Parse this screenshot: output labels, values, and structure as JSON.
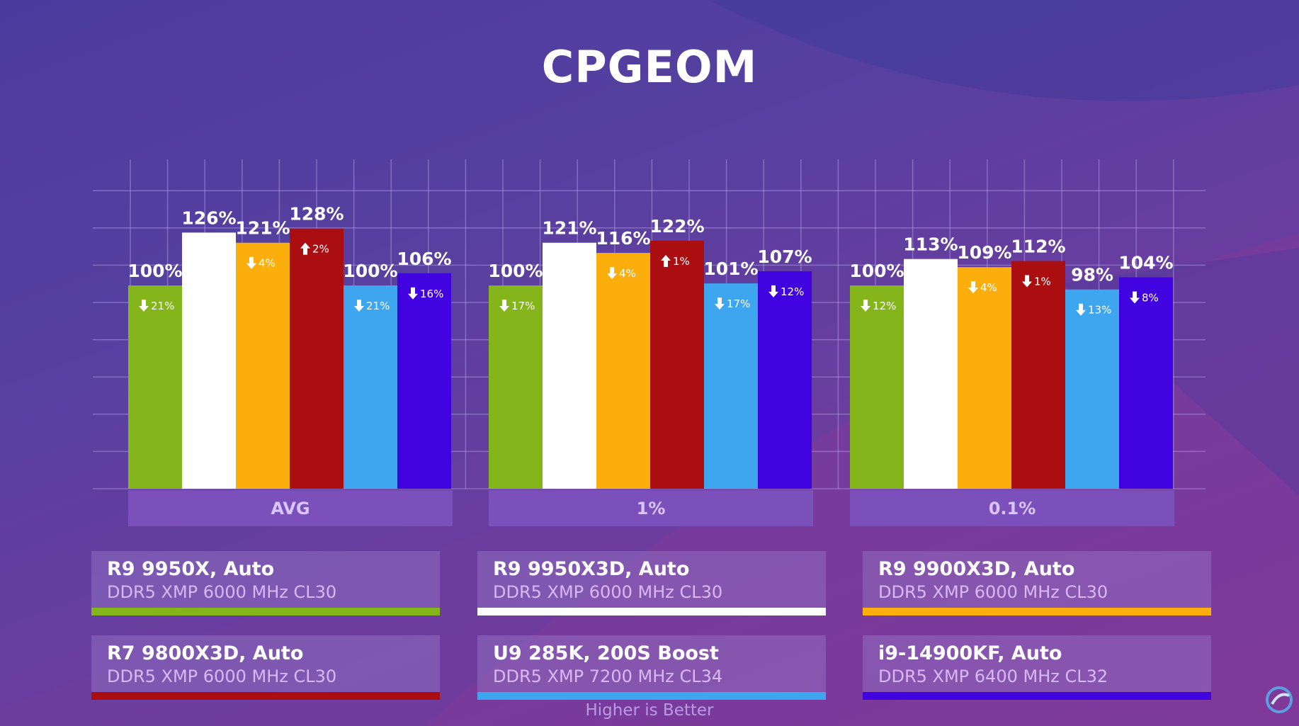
{
  "title": "CPGEOM",
  "note": "Higher is Better",
  "chart_data": {
    "type": "bar",
    "title": "CPGEOM",
    "categories": [
      "AVG",
      "1%",
      "0.1%"
    ],
    "ylim": [
      0,
      140
    ],
    "grid": true,
    "legend_placement": "bottom",
    "series": [
      {
        "name": "R9 9950X, Auto",
        "sub": "DDR5 XMP 6000 MHz CL30",
        "color": "#84b51a",
        "values": [
          100,
          100,
          100
        ],
        "deltas": [
          {
            "dir": "down",
            "text": "21%"
          },
          {
            "dir": "down",
            "text": "17%"
          },
          {
            "dir": "down",
            "text": "12%"
          }
        ]
      },
      {
        "name": "R9 9950X3D, Auto",
        "sub": "DDR5 XMP 6000 MHz CL30",
        "color": "#ffffff",
        "values": [
          126,
          121,
          113
        ],
        "deltas": [
          null,
          null,
          null
        ]
      },
      {
        "name": "R9 9900X3D, Auto",
        "sub": "DDR5 XMP 6000 MHz CL30",
        "color": "#fbae0c",
        "values": [
          121,
          116,
          109
        ],
        "deltas": [
          {
            "dir": "down",
            "text": "4%"
          },
          {
            "dir": "down",
            "text": "4%"
          },
          {
            "dir": "down",
            "text": "4%"
          }
        ]
      },
      {
        "name": "R7 9800X3D, Auto",
        "sub": "DDR5 XMP 6000 MHz CL30",
        "color": "#ab0e10",
        "values": [
          128,
          122,
          112
        ],
        "deltas": [
          {
            "dir": "up",
            "text": "2%"
          },
          {
            "dir": "up",
            "text": "1%"
          },
          {
            "dir": "down",
            "text": "1%"
          }
        ]
      },
      {
        "name": "U9 285K, 200S Boost",
        "sub": "DDR5 XMP 7200 MHz CL34",
        "color": "#3ea6ee",
        "values": [
          100,
          101,
          98
        ],
        "deltas": [
          {
            "dir": "down",
            "text": "21%"
          },
          {
            "dir": "down",
            "text": "17%"
          },
          {
            "dir": "down",
            "text": "13%"
          }
        ]
      },
      {
        "name": "i9-14900KF, Auto",
        "sub": "DDR5 XMP 6400 MHz CL32",
        "color": "#4003e0",
        "values": [
          106,
          107,
          104
        ],
        "deltas": [
          {
            "dir": "down",
            "text": "16%"
          },
          {
            "dir": "down",
            "text": "12%"
          },
          {
            "dir": "down",
            "text": "8%"
          }
        ]
      }
    ]
  }
}
